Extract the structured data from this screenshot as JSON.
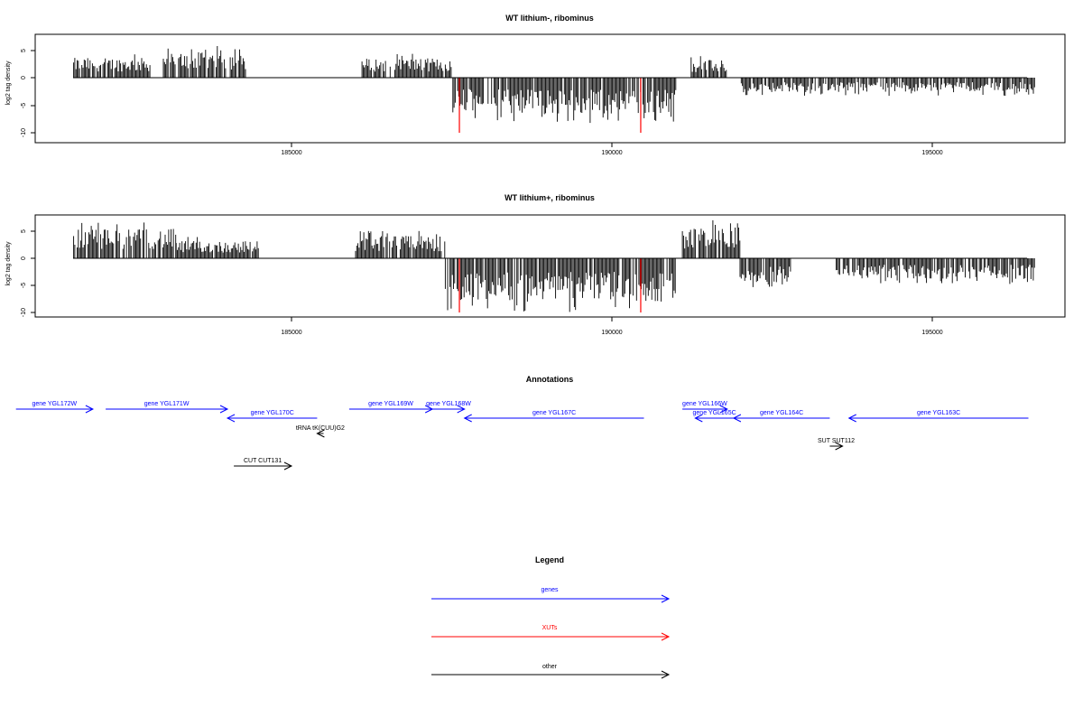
{
  "panels": [
    {
      "title": "WT lithium-, ribominus",
      "ylabel": "log2 tag density",
      "yticks": [
        "5",
        "0",
        "-5",
        "-10"
      ],
      "xticks": [
        "185000",
        "190000",
        "195000"
      ],
      "highlights_xvalues": [
        187620,
        190450
      ]
    },
    {
      "title": "WT lithium+, ribominus",
      "ylabel": "log2 tag density",
      "yticks": [
        "5",
        "0",
        "-5",
        "-10"
      ],
      "xticks": [
        "185000",
        "190000",
        "195000"
      ],
      "highlights_xvalues": [
        187620,
        190450
      ]
    }
  ],
  "chart_data": [
    {
      "type": "bar",
      "title": "WT lithium-, ribominus",
      "xlabel": "",
      "ylabel": "log2 tag density",
      "xlim": [
        180700,
        197800
      ],
      "ylim": [
        -10.5,
        7.5
      ],
      "grid": false,
      "highlight_lines": [
        {
          "x": 187620,
          "y": -10
        },
        {
          "x": 190450,
          "y": -10
        }
      ],
      "segments": [
        {
          "x": [
            181600,
            182800
          ],
          "sign": 1,
          "max": 4.5
        },
        {
          "x": [
            183000,
            184300
          ],
          "sign": 1,
          "max": 5.8
        },
        {
          "x": [
            186100,
            187500
          ],
          "sign": 1,
          "max": 4.4
        },
        {
          "x": [
            187500,
            191000
          ],
          "sign": -1,
          "max": 8.3
        },
        {
          "x": [
            191200,
            191800
          ],
          "sign": 1,
          "max": 4.0
        },
        {
          "x": [
            192000,
            196600
          ],
          "sign": -1,
          "max": 3.3
        }
      ]
    },
    {
      "type": "bar",
      "title": "WT lithium+, ribominus",
      "xlabel": "",
      "ylabel": "log2 tag density",
      "xlim": [
        180700,
        197800
      ],
      "ylim": [
        -10.5,
        7.5
      ],
      "grid": false,
      "highlight_lines": [
        {
          "x": 187620,
          "y": -10
        },
        {
          "x": 190450,
          "y": -10
        }
      ],
      "segments": [
        {
          "x": [
            181600,
            183200
          ],
          "sign": 1,
          "max": 6.8
        },
        {
          "x": [
            183200,
            184500
          ],
          "sign": 1,
          "max": 4.0
        },
        {
          "x": [
            186000,
            187400
          ],
          "sign": 1,
          "max": 5.2
        },
        {
          "x": [
            187400,
            191000
          ],
          "sign": -1,
          "max": 10.0
        },
        {
          "x": [
            191100,
            192000
          ],
          "sign": 1,
          "max": 7.2
        },
        {
          "x": [
            192000,
            192800
          ],
          "sign": -1,
          "max": 5.6
        },
        {
          "x": [
            193500,
            196600
          ],
          "sign": -1,
          "max": 4.8
        }
      ]
    }
  ],
  "annotations": {
    "title": "Annotations",
    "features": [
      {
        "label": "gene YGL172W",
        "kind": "gene",
        "start": 180700,
        "end": 181900,
        "dir": "right",
        "row": 0
      },
      {
        "label": "gene YGL171W",
        "kind": "gene",
        "start": 182100,
        "end": 184000,
        "dir": "right",
        "row": 0
      },
      {
        "label": "gene YGL170C",
        "kind": "gene",
        "start": 184000,
        "end": 185400,
        "dir": "left",
        "row": 1
      },
      {
        "label": "gene YGL169W",
        "kind": "gene",
        "start": 185900,
        "end": 187200,
        "dir": "right",
        "row": 0
      },
      {
        "label": "gene YGL168W",
        "kind": "gene",
        "start": 187200,
        "end": 187700,
        "dir": "right",
        "row": 0
      },
      {
        "label": "gene YGL167C",
        "kind": "gene",
        "start": 187700,
        "end": 190500,
        "dir": "left",
        "row": 1
      },
      {
        "label": "gene YGL166W",
        "kind": "gene",
        "start": 191100,
        "end": 191800,
        "dir": "right",
        "row": 0
      },
      {
        "label": "gene YGL165C",
        "kind": "gene",
        "start": 191300,
        "end": 191900,
        "dir": "left",
        "row": 1
      },
      {
        "label": "gene YGL164C",
        "kind": "gene",
        "start": 191900,
        "end": 193400,
        "dir": "left",
        "row": 1
      },
      {
        "label": "gene YGL163C",
        "kind": "gene",
        "start": 193700,
        "end": 196500,
        "dir": "left",
        "row": 1
      },
      {
        "label": "tRNA tK(CUU)G2",
        "kind": "other",
        "start": 185400,
        "end": 185500,
        "dir": "left",
        "row": 2
      },
      {
        "label": "SUT SUT112",
        "kind": "other",
        "start": 193400,
        "end": 193600,
        "dir": "right",
        "row": 3
      },
      {
        "label": "CUT CUT131",
        "kind": "other",
        "start": 184100,
        "end": 185000,
        "dir": "right",
        "row": 4
      }
    ]
  },
  "legend": {
    "title": "Legend",
    "items": [
      {
        "label": "genes",
        "color": "#0000ff"
      },
      {
        "label": "XUTs",
        "color": "#ff0000"
      },
      {
        "label": "other",
        "color": "#000000"
      }
    ]
  },
  "colors": {
    "gene": "#0000ff",
    "xut": "#ff0000",
    "other": "#000000",
    "highlight": "#ff0000"
  }
}
